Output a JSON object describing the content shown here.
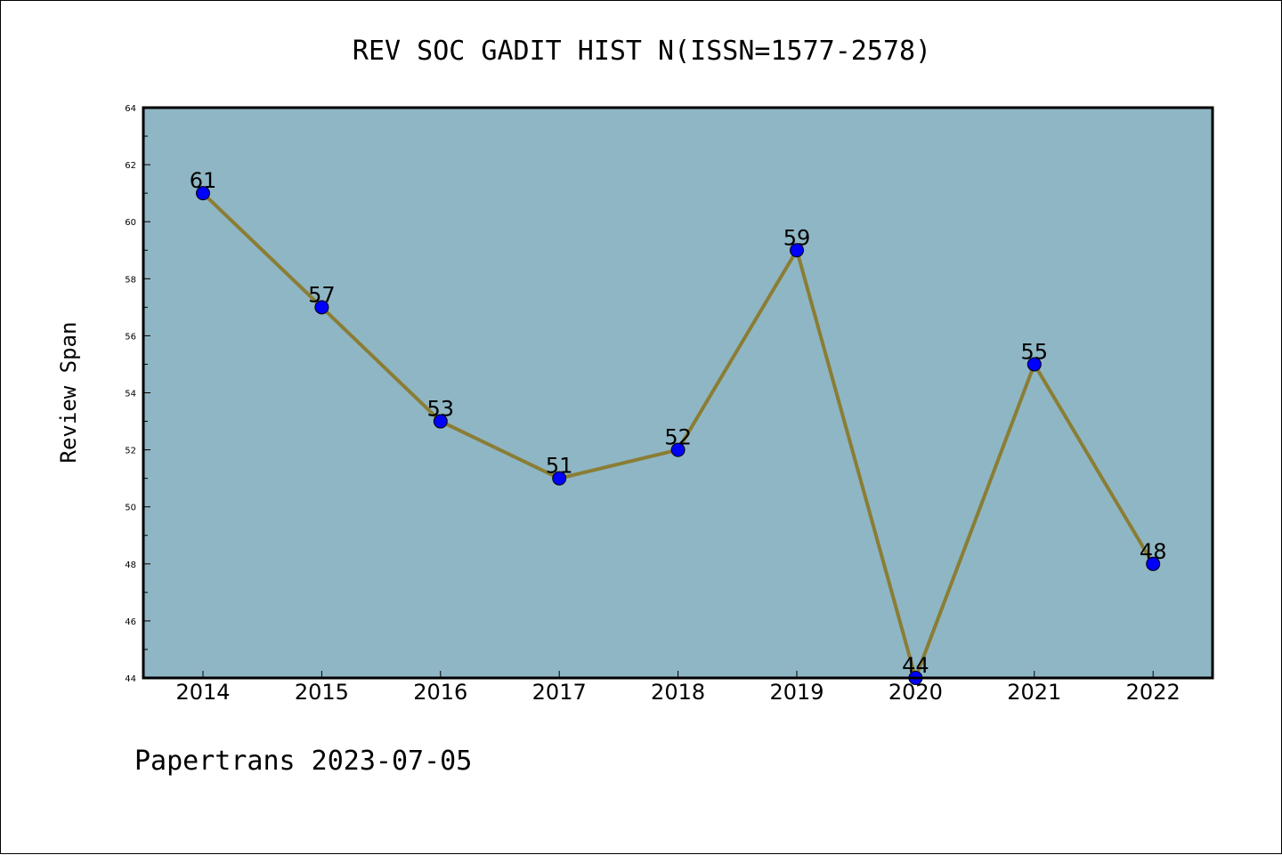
{
  "chart_data": {
    "type": "line",
    "title": "REV SOC GADIT HIST N(ISSN=1577-2578)",
    "xlabel": "",
    "ylabel": "Review Span",
    "categories": [
      "2014",
      "2015",
      "2016",
      "2017",
      "2018",
      "2019",
      "2020",
      "2021",
      "2022"
    ],
    "values": [
      61,
      57,
      53,
      51,
      52,
      59,
      44,
      55,
      48
    ],
    "data_labels": [
      "61",
      "57",
      "53",
      "51",
      "52",
      "59",
      "44",
      "55",
      "48"
    ],
    "ylim": [
      44,
      64
    ],
    "yticks": [
      44,
      46,
      48,
      50,
      52,
      54,
      56,
      58,
      60,
      62,
      64
    ],
    "ytick_labels": [
      "44",
      "46",
      "48",
      "50",
      "52",
      "54",
      "56",
      "58",
      "60",
      "62",
      "64"
    ],
    "grid": false,
    "legend": "none",
    "colors": {
      "plot_background": "#8fb6c4",
      "line": "#8a7d35",
      "marker": "#0000ff",
      "marker_edge": "#000000"
    }
  },
  "footer": {
    "text": "Papertrans 2023-07-05"
  }
}
